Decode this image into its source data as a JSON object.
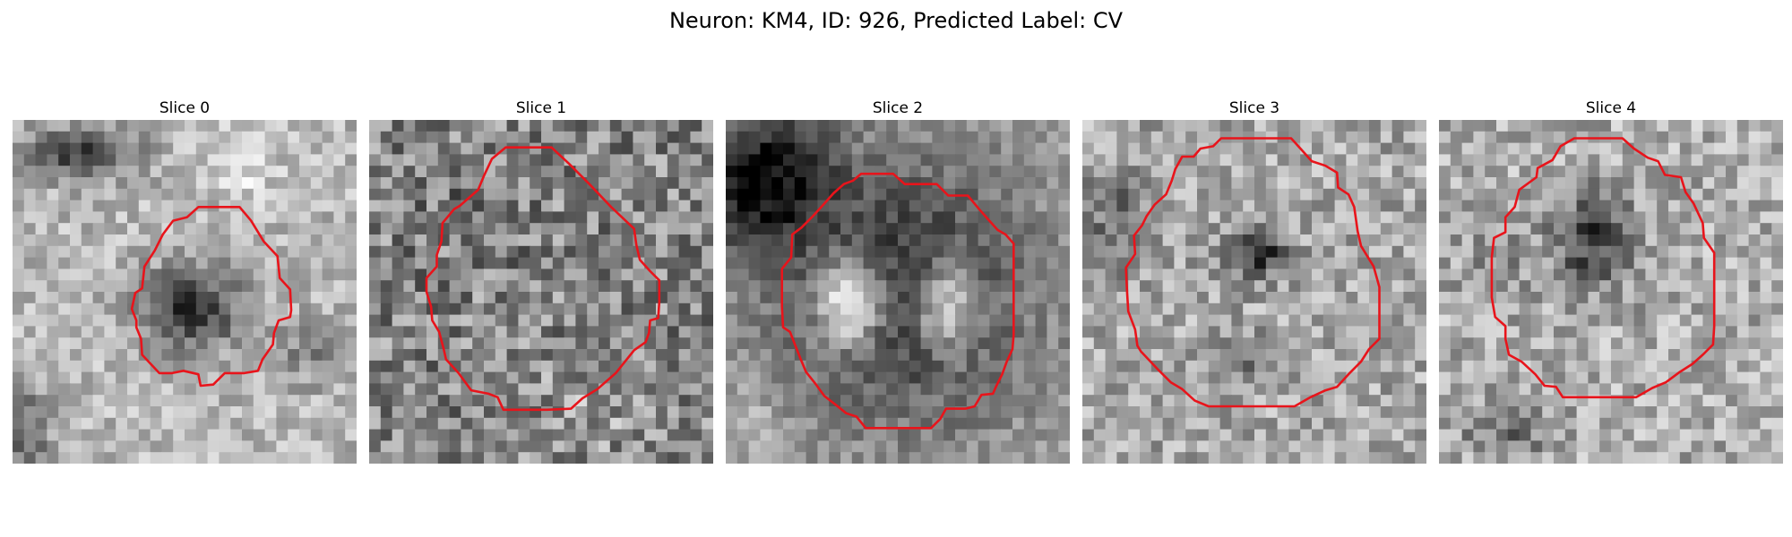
{
  "figure": {
    "title": "Neuron: KM4, ID: 926, Predicted Label: CV"
  },
  "panels": [
    {
      "title": "Slice 0"
    },
    {
      "title": "Slice 1"
    },
    {
      "title": "Slice 2"
    },
    {
      "title": "Slice 3"
    },
    {
      "title": "Slice 4"
    }
  ],
  "colors": {
    "contour": "#e8141b",
    "colormap": "grayscale"
  }
}
